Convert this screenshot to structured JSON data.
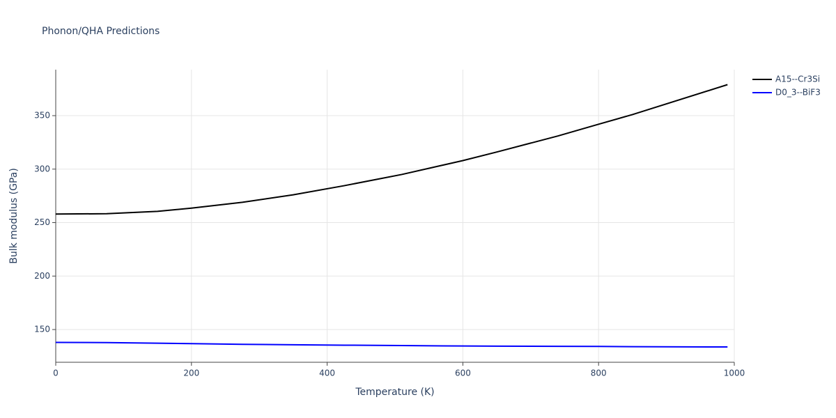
{
  "chart_data": {
    "type": "line",
    "title": "Phonon/QHA Predictions",
    "x_label": "Temperature (K)",
    "y_label": "Bulk modulus (GPa)",
    "x": [
      0,
      75,
      150,
      200,
      275,
      350,
      425,
      510,
      600,
      650,
      740,
      800,
      850,
      990
    ],
    "series": [
      {
        "name": "A15--Cr3Si",
        "color": "#000000",
        "values": [
          258,
          258.3,
          260.5,
          263.5,
          269,
          276,
          284.5,
          295,
          308,
          316,
          331,
          342,
          351,
          379
        ]
      },
      {
        "name": "D0_3--BiF3",
        "color": "#0000ff",
        "values": [
          138,
          137.8,
          137.2,
          136.8,
          136.2,
          135.8,
          135.4,
          135,
          134.6,
          134.5,
          134.3,
          134.2,
          134,
          133.7
        ]
      }
    ],
    "xlim": [
      0,
      1000
    ],
    "xticks": [
      0,
      200,
      400,
      600,
      800,
      1000
    ],
    "ylim": [
      119.4,
      393
    ],
    "yticks": [
      150,
      200,
      250,
      300,
      350
    ],
    "grid": true,
    "legend": "right"
  }
}
